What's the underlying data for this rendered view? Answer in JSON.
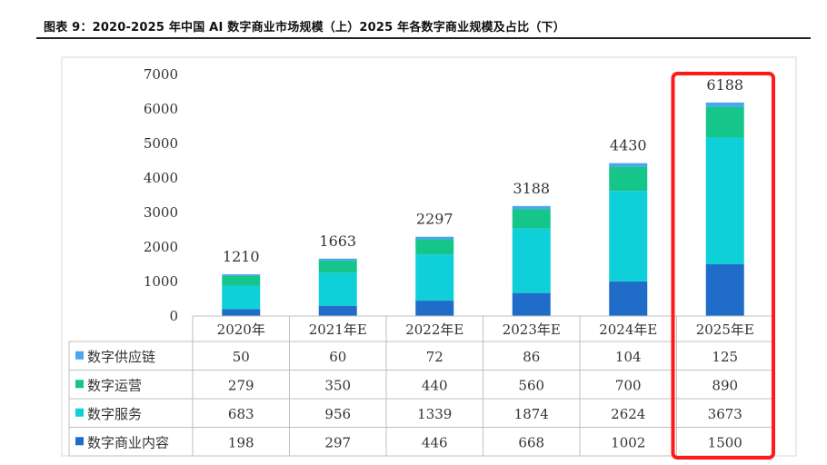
{
  "figure": {
    "caption": "图表 9：2020-2025 年中国 AI 数字商业市场规模（上）2025 年各数字商业规模及占比（下）"
  },
  "chart_data": {
    "type": "bar",
    "stacked": true,
    "title": "",
    "xlabel": "",
    "ylabel": "",
    "ylim": [
      0,
      7000
    ],
    "yticks": [
      0,
      1000,
      2000,
      3000,
      4000,
      5000,
      6000,
      7000
    ],
    "categories": [
      "2020年",
      "2021年E",
      "2022年E",
      "2023年E",
      "2024年E",
      "2025年E"
    ],
    "totals": [
      1210,
      1663,
      2297,
      3188,
      4430,
      6188
    ],
    "series": [
      {
        "name": "数字商业内容",
        "color": "#1f6dc8",
        "values": [
          198,
          297,
          446,
          668,
          1002,
          1500
        ]
      },
      {
        "name": "数字服务",
        "color": "#0fcfd9",
        "values": [
          683,
          956,
          1339,
          1874,
          2624,
          3673
        ]
      },
      {
        "name": "数字运营",
        "color": "#15c58a",
        "values": [
          279,
          350,
          440,
          560,
          700,
          890
        ]
      },
      {
        "name": "数字供应链",
        "color": "#4aa6ee",
        "values": [
          50,
          60,
          72,
          86,
          104,
          125
        ]
      }
    ],
    "table_row_order": [
      "数字供应链",
      "数字运营",
      "数字服务",
      "数字商业内容"
    ],
    "highlight": {
      "category": "2025年E",
      "color": "#ff1a1a"
    }
  }
}
